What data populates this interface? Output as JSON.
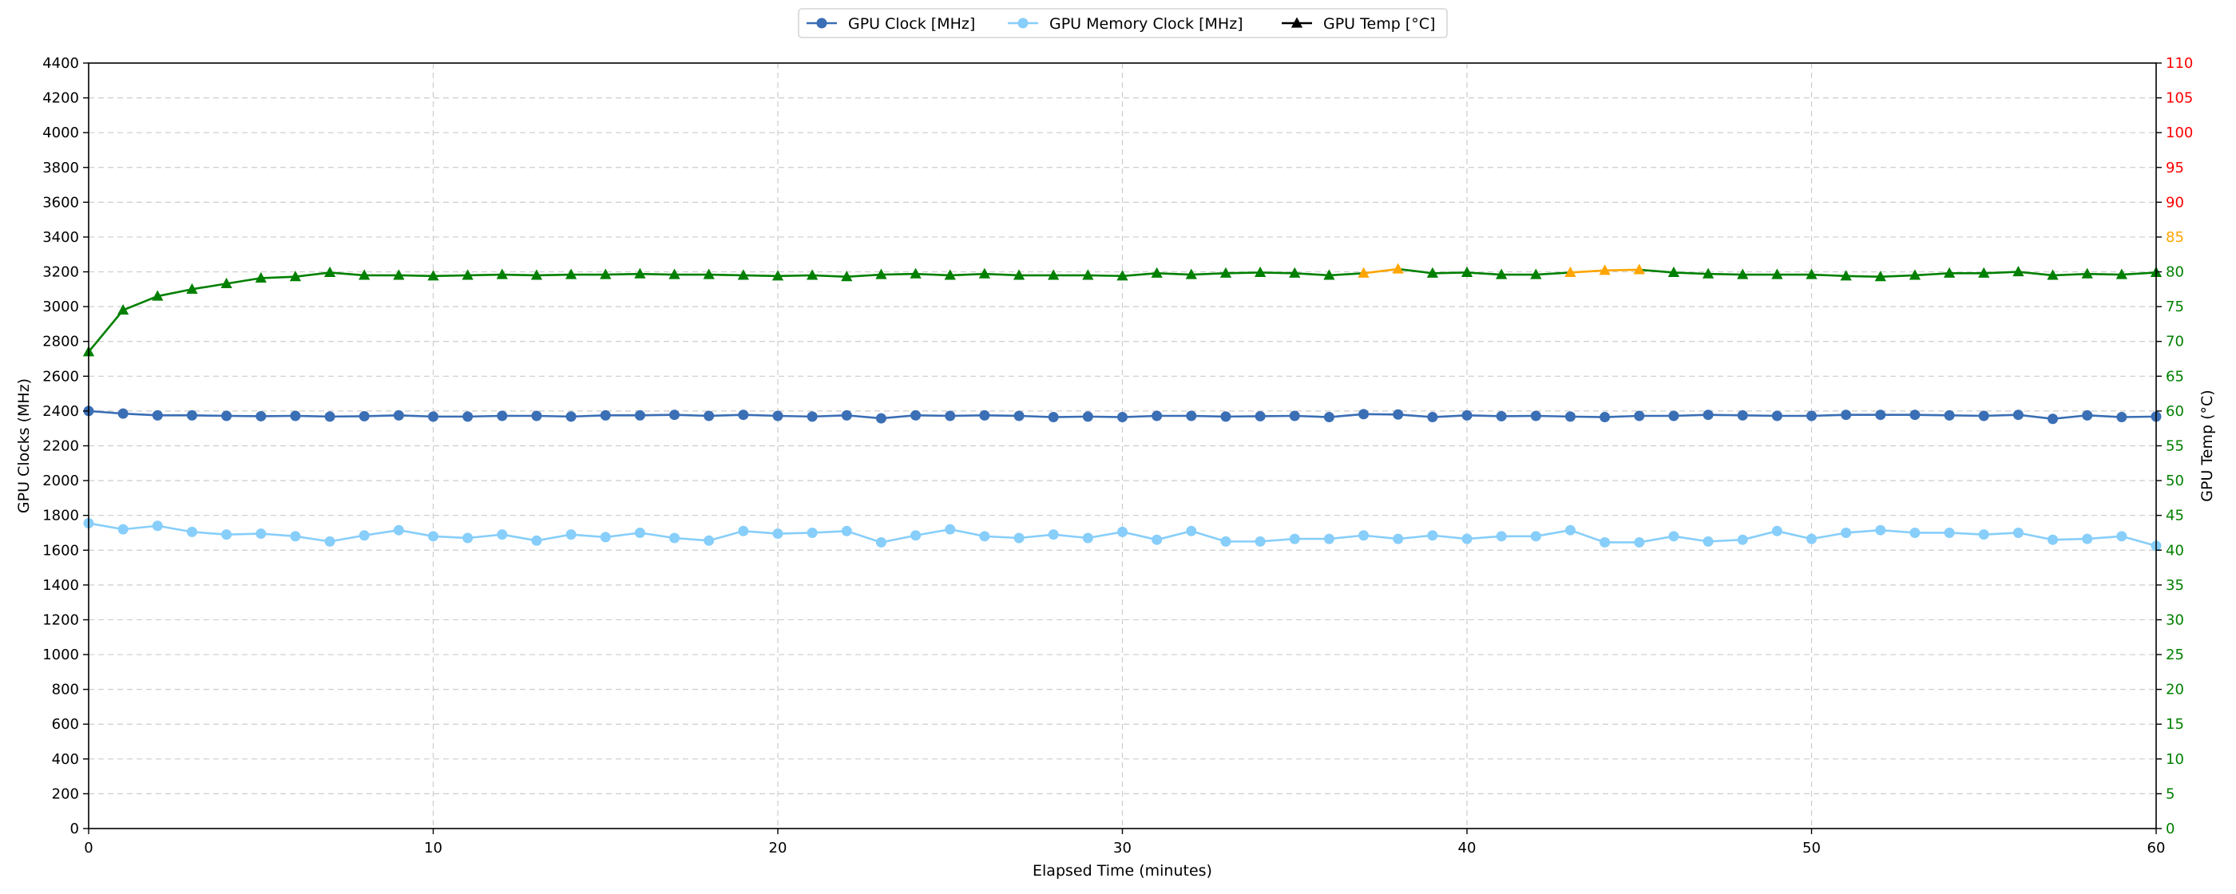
{
  "chart_data": {
    "type": "line",
    "xlabel": "Elapsed Time (minutes)",
    "ylabel": "GPU Clocks (MHz)",
    "y2label": "GPU Temp (°C)",
    "xlim": [
      0,
      60
    ],
    "ylim": [
      0,
      4400
    ],
    "y2lim": [
      0,
      110
    ],
    "x_ticks": [
      0,
      10,
      20,
      30,
      40,
      50,
      60
    ],
    "y_ticks": [
      0,
      200,
      400,
      600,
      800,
      1000,
      1200,
      1400,
      1600,
      1800,
      2000,
      2200,
      2400,
      2600,
      2800,
      3000,
      3200,
      3400,
      3600,
      3800,
      4000,
      4200,
      4400
    ],
    "y2_ticks": [
      0,
      5,
      10,
      15,
      20,
      25,
      30,
      35,
      40,
      45,
      50,
      55,
      60,
      65,
      70,
      75,
      80,
      85,
      90,
      95,
      100,
      105,
      110
    ],
    "y2_tick_colors": {
      "normal": "#008000",
      "warn": "#FFA500",
      "critical": "#FF0000"
    },
    "y2_tick_thresholds": {
      "warn_at": 85,
      "critical_at": 90
    },
    "grid": true,
    "legend_position": "top-center",
    "x": [
      0,
      1,
      2,
      3,
      4,
      5,
      6,
      7,
      8,
      9,
      10,
      11,
      12,
      13,
      14,
      15,
      16,
      17,
      18,
      19,
      20,
      21,
      22,
      23,
      24,
      25,
      26,
      27,
      28,
      29,
      30,
      31,
      32,
      33,
      34,
      35,
      36,
      37,
      38,
      39,
      40,
      41,
      42,
      43,
      44,
      45,
      46,
      47,
      48,
      49,
      50,
      51,
      52,
      53,
      54,
      55,
      56,
      57,
      58,
      59,
      60
    ],
    "series": [
      {
        "name": "GPU Clock [MHz]",
        "axis": "left",
        "color": "#3A6EB5",
        "marker": "circle",
        "values": [
          2400,
          2385,
          2375,
          2375,
          2372,
          2370,
          2372,
          2368,
          2370,
          2375,
          2368,
          2368,
          2372,
          2372,
          2368,
          2375,
          2375,
          2378,
          2372,
          2378,
          2372,
          2368,
          2375,
          2358,
          2375,
          2372,
          2375,
          2372,
          2365,
          2368,
          2365,
          2372,
          2372,
          2368,
          2370,
          2372,
          2365,
          2382,
          2380,
          2365,
          2375,
          2370,
          2372,
          2368,
          2365,
          2372,
          2372,
          2378,
          2375,
          2372,
          2372,
          2378,
          2378,
          2378,
          2375,
          2372,
          2378,
          2355,
          2375,
          2365,
          2368
        ]
      },
      {
        "name": "GPU Memory Clock [MHz]",
        "axis": "left",
        "color": "#87CEFA",
        "marker": "circle",
        "values": [
          1755,
          1720,
          1740,
          1705,
          1690,
          1695,
          1680,
          1650,
          1685,
          1715,
          1680,
          1670,
          1690,
          1655,
          1690,
          1675,
          1700,
          1670,
          1655,
          1710,
          1695,
          1700,
          1710,
          1645,
          1685,
          1720,
          1680,
          1670,
          1690,
          1670,
          1705,
          1660,
          1710,
          1650,
          1650,
          1665,
          1665,
          1685,
          1665,
          1685,
          1665,
          1680,
          1680,
          1715,
          1645,
          1645,
          1680,
          1650,
          1660,
          1710,
          1665,
          1700,
          1715,
          1700,
          1700,
          1690,
          1700,
          1660,
          1665,
          1680,
          1625
        ]
      },
      {
        "name": "GPU Temp [°C]",
        "axis": "right",
        "color": "#008000",
        "highlight_color": "#FFA500",
        "marker": "triangle",
        "values": [
          68.5,
          74.5,
          76.5,
          77.5,
          78.3,
          79.1,
          79.3,
          79.9,
          79.5,
          79.5,
          79.4,
          79.5,
          79.6,
          79.5,
          79.6,
          79.6,
          79.7,
          79.6,
          79.6,
          79.5,
          79.4,
          79.5,
          79.3,
          79.6,
          79.7,
          79.5,
          79.7,
          79.5,
          79.5,
          79.5,
          79.4,
          79.8,
          79.6,
          79.8,
          79.9,
          79.8,
          79.5,
          79.8,
          80.4,
          79.8,
          79.9,
          79.6,
          79.6,
          79.9,
          80.2,
          80.3,
          79.9,
          79.7,
          79.6,
          79.6,
          79.6,
          79.4,
          79.3,
          79.5,
          79.8,
          79.8,
          80.0,
          79.5,
          79.7,
          79.6,
          79.9
        ],
        "highlight_x": [
          37,
          38,
          43,
          44,
          45
        ]
      }
    ]
  }
}
